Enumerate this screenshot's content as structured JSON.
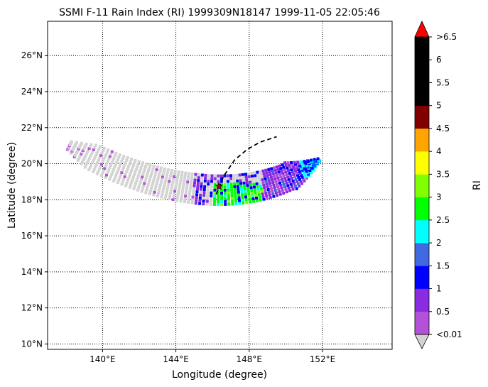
{
  "chart_data": {
    "type": "scatter",
    "title": "SSMI F-11 Rain Index (RI) 1999309N18147 1999-11-05 22:05:46",
    "xlabel": "Longitude (degree)",
    "ylabel": "Latitude (degree)",
    "xlim": [
      137,
      155.8
    ],
    "ylim": [
      9.7,
      27.9
    ],
    "x_ticks": [
      {
        "value": 140,
        "label": "140°E"
      },
      {
        "value": 144,
        "label": "144°E"
      },
      {
        "value": 148,
        "label": "148°E"
      },
      {
        "value": 152,
        "label": "152°E"
      }
    ],
    "y_ticks": [
      {
        "value": 10,
        "label": "10°N"
      },
      {
        "value": 12,
        "label": "12°N"
      },
      {
        "value": 14,
        "label": "14°N"
      },
      {
        "value": 16,
        "label": "16°N"
      },
      {
        "value": 18,
        "label": "18°N"
      },
      {
        "value": 20,
        "label": "20°N"
      },
      {
        "value": 22,
        "label": "22°N"
      },
      {
        "value": 24,
        "label": "24°N"
      },
      {
        "value": 26,
        "label": "26°N"
      }
    ],
    "grid": true,
    "grid_style": "dotted",
    "storm_track": {
      "x": [
        146.2,
        146.6,
        147.2,
        147.9,
        148.6,
        149.5
      ],
      "y": [
        18.3,
        19.3,
        20.2,
        20.8,
        21.2,
        21.5
      ]
    },
    "storm_center": {
      "x": 146.35,
      "y": 18.75
    },
    "colorbar": {
      "label": "RI",
      "tick_labels": [
        "<0.01",
        "0.5",
        "1",
        "1.5",
        "2",
        "2.5",
        "3",
        "3.5",
        "4",
        "4.5",
        "5",
        "5.5",
        "6",
        ">6.5"
      ],
      "bin_colors": [
        "#b451d9",
        "#8a2be2",
        "#0000ff",
        "#4169e1",
        "#00ffff",
        "#00ff00",
        "#7fff00",
        "#ffff00",
        "#ffa500",
        "#800000",
        "#000000",
        "#000000",
        "#000000"
      ],
      "under_color": "#d3d3d3",
      "over_color": "#ff0000"
    },
    "swath_no_rain_color": "#d3d3d3"
  }
}
